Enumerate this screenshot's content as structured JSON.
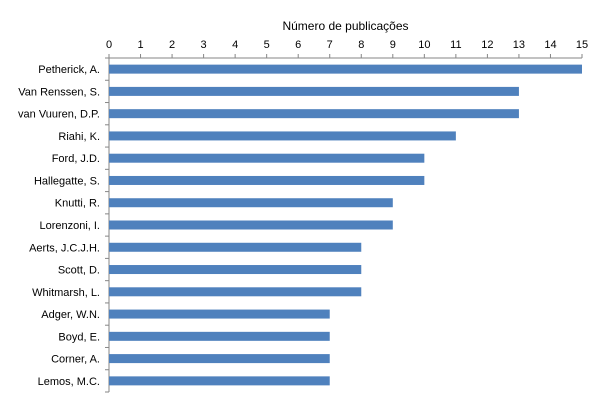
{
  "chart_data": {
    "type": "bar",
    "orientation": "horizontal",
    "title": "",
    "xlabel": "Número de publicações",
    "ylabel": "",
    "xaxis_position": "top",
    "xlim": [
      0,
      15
    ],
    "xticks": [
      0,
      1,
      2,
      3,
      4,
      5,
      6,
      7,
      8,
      9,
      10,
      11,
      12,
      13,
      14,
      15
    ],
    "grid": false,
    "legend": "none",
    "bar_color": "#4F81BD",
    "categories": [
      "Petherick, A.",
      "Van Renssen, S.",
      "van Vuuren, D.P.",
      "Riahi, K.",
      "Ford, J.D.",
      "Hallegatte, S.",
      "Knutti, R.",
      "Lorenzoni, I.",
      "Aerts, J.C.J.H.",
      "Scott, D.",
      "Whitmarsh, L.",
      "Adger, W.N.",
      "Boyd, E.",
      "Corner, A.",
      "Lemos, M.C."
    ],
    "values": [
      15,
      13,
      13,
      11,
      10,
      10,
      9,
      9,
      8,
      8,
      8,
      7,
      7,
      7,
      7
    ]
  }
}
